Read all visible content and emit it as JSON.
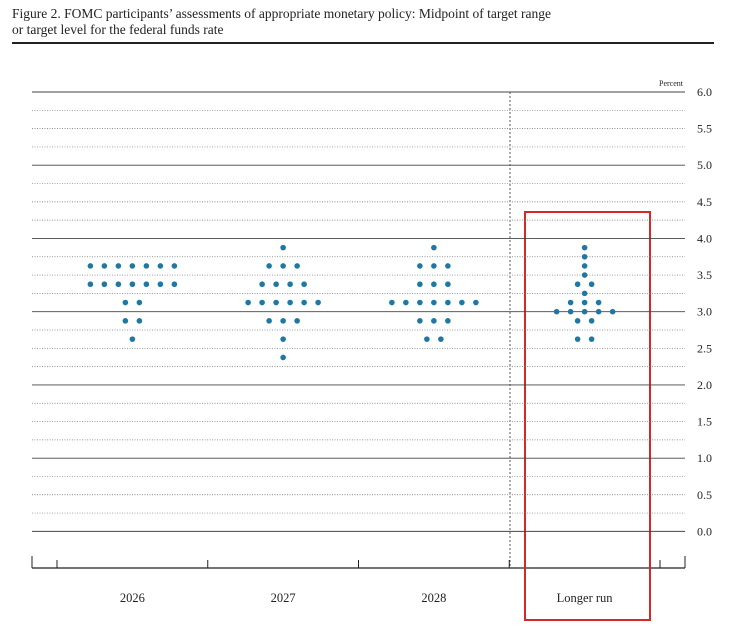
{
  "chart_data": {
    "type": "dot",
    "title": "Figure 2. FOMC participants’ assessments of appropriate monetary policy: Midpoint of target range",
    "subtitle": "or target level for the federal funds rate",
    "y_label": "Percent",
    "categories": [
      "2026",
      "2027",
      "2028",
      "Longer run"
    ],
    "values": [
      [
        3.625,
        3.625,
        3.625,
        3.625,
        3.625,
        3.625,
        3.625,
        3.375,
        3.375,
        3.375,
        3.375,
        3.375,
        3.375,
        3.375,
        3.125,
        3.125,
        2.875,
        2.875,
        2.625
      ],
      [
        3.875,
        3.625,
        3.625,
        3.625,
        3.375,
        3.375,
        3.375,
        3.375,
        3.125,
        3.125,
        3.125,
        3.125,
        3.125,
        3.125,
        2.875,
        2.875,
        2.875,
        2.625,
        2.375
      ],
      [
        3.875,
        3.625,
        3.625,
        3.625,
        3.375,
        3.375,
        3.375,
        3.125,
        3.125,
        3.125,
        3.125,
        3.125,
        3.125,
        3.125,
        2.875,
        2.875,
        2.875,
        2.625,
        2.625
      ],
      [
        3.875,
        3.75,
        3.625,
        3.5,
        3.375,
        3.375,
        3.25,
        3.125,
        3.125,
        3.125,
        3.0,
        3.0,
        3.0,
        3.0,
        3.0,
        2.875,
        2.875,
        2.625,
        2.625
      ]
    ],
    "color": "#1f78a4",
    "ylim": [
      -0.5,
      6.0
    ],
    "yticks": [
      {
        "value": 0,
        "label": "0.0"
      },
      {
        "value": 0.5,
        "label": "0.5"
      },
      {
        "value": 1,
        "label": "1.0"
      },
      {
        "value": 1.5,
        "label": "1.5"
      },
      {
        "value": 2,
        "label": "2.0"
      },
      {
        "value": 2.5,
        "label": "2.5"
      },
      {
        "value": 3,
        "label": "3.0"
      },
      {
        "value": 3.5,
        "label": "3.5"
      },
      {
        "value": 4,
        "label": "4.0"
      },
      {
        "value": 4.5,
        "label": "4.5"
      },
      {
        "value": 5,
        "label": "5.0"
      },
      {
        "value": 5.5,
        "label": "5.5"
      },
      {
        "value": 6,
        "label": "6.0"
      }
    ]
  }
}
